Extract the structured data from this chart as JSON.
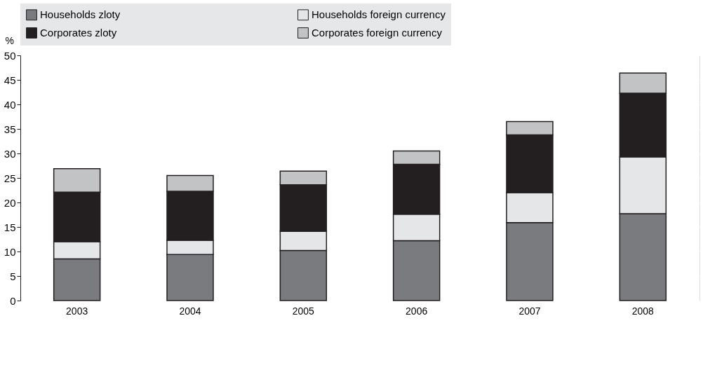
{
  "chart_data": {
    "type": "bar",
    "stacked": true,
    "ylabel": "%",
    "categories": [
      "2003",
      "2004",
      "2005",
      "2006",
      "2007",
      "2008"
    ],
    "series": [
      {
        "name": "Households zloty",
        "color": "#7a7b7f",
        "values": [
          8.5,
          9.4,
          10.2,
          12.2,
          15.9,
          17.7
        ]
      },
      {
        "name": "Households foreign currency",
        "color": "#e5e6e8",
        "values": [
          3.5,
          2.9,
          3.9,
          5.4,
          6.1,
          11.6
        ]
      },
      {
        "name": "Corporates zloty",
        "color": "#231f20",
        "values": [
          10.1,
          10.0,
          9.5,
          10.2,
          11.8,
          13.0
        ]
      },
      {
        "name": "Corporates foreign currency",
        "color": "#c2c3c5",
        "values": [
          4.8,
          3.2,
          2.8,
          2.7,
          2.7,
          4.1
        ]
      }
    ],
    "ylim": [
      0,
      50
    ],
    "yticks": [
      0,
      5,
      10,
      15,
      20,
      25,
      30,
      35,
      40,
      45,
      50
    ],
    "grid": true,
    "legend": "top"
  }
}
